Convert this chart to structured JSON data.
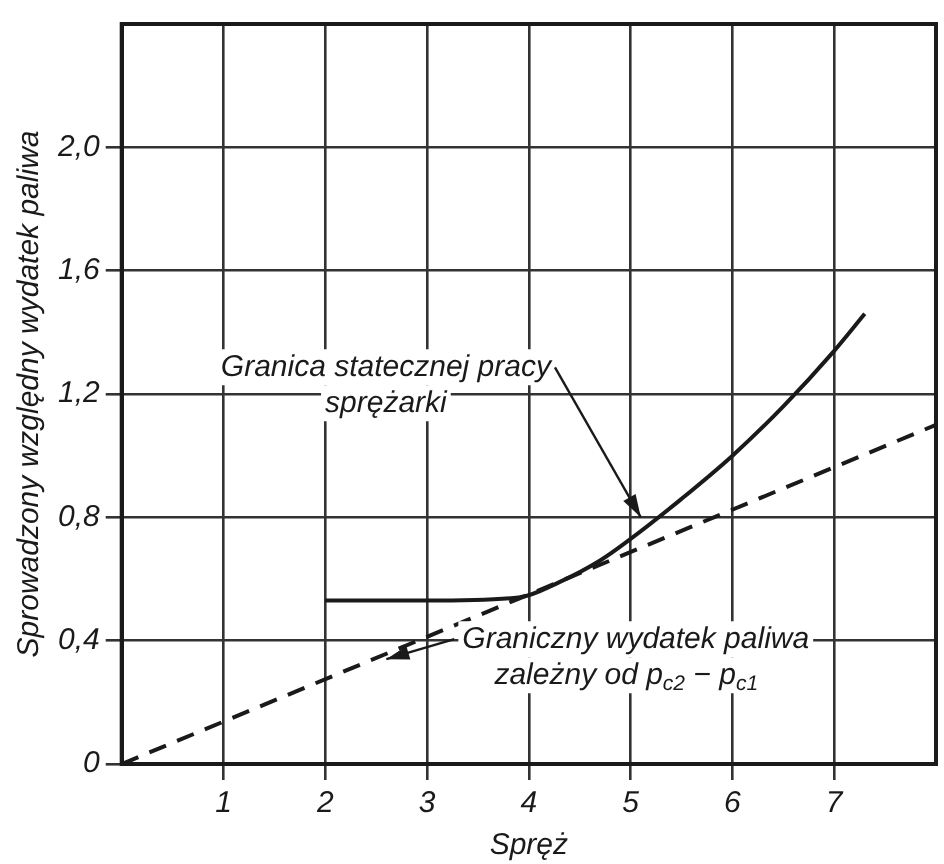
{
  "chart_data": {
    "type": "line",
    "xlabel": "Spręż",
    "ylabel": "Sprowadzony względny wydatek paliwa",
    "xlim": [
      0,
      8
    ],
    "xticks": [
      1,
      2,
      3,
      4,
      5,
      6,
      7
    ],
    "ylim": [
      0,
      2.4
    ],
    "yticks": [
      0,
      {
        "value": 0.4,
        "label": "0,4"
      },
      {
        "value": 0.8,
        "label": "0,8"
      },
      {
        "value": 1.2,
        "label": "1,2"
      },
      {
        "value": 1.6,
        "label": "1,6"
      },
      {
        "value": 2.0,
        "label": "2,0"
      }
    ],
    "grid": true,
    "legend": false,
    "marker": "none",
    "series": [
      {
        "color": "#1a1a1a",
        "line_style": "solid",
        "x": [
          2,
          3,
          3.9,
          4.3,
          4.7,
          5,
          5.5,
          6,
          6.5,
          7,
          7.3
        ],
        "values": [
          0.53,
          0.53,
          0.54,
          0.59,
          0.66,
          0.73,
          0.86,
          1.0,
          1.16,
          1.34,
          1.46
        ]
      },
      {
        "color": "#1a1a1a",
        "line_style": "dashed",
        "x": [
          0,
          8
        ],
        "values": [
          0,
          1.1
        ]
      }
    ],
    "annotations": [
      {
        "text": "Granica statecznej pracy\nsprężarki",
        "x": 5.1,
        "y": 0.8
      },
      {
        "text": "Graniczny wydatek paliwa\nzależny od p$_{c2}$ − p$_{c1}$",
        "x": 2.6,
        "y": 0.34
      }
    ]
  }
}
